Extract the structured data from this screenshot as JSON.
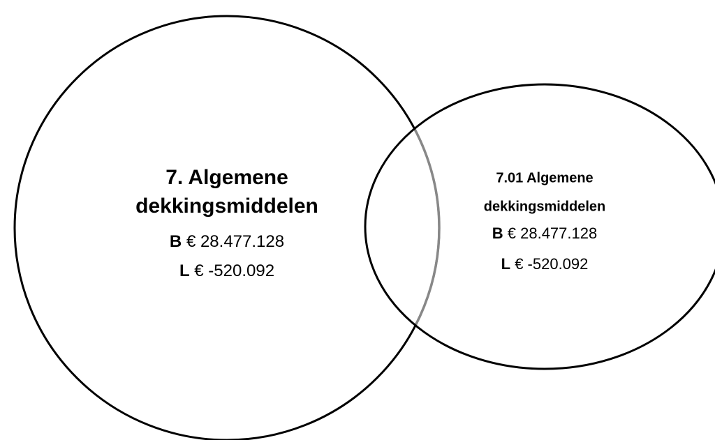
{
  "nodes": [
    {
      "title": [
        "7. Algemene",
        "dekkingsmiddelen"
      ],
      "lines": [
        {
          "label": "B",
          "amount": "€ 28.477.128"
        },
        {
          "label": "L",
          "amount": "€ -520.092"
        }
      ]
    },
    {
      "title": [
        "7.01 Algemene",
        "dekkingsmiddelen"
      ],
      "lines": [
        {
          "label": "B",
          "amount": "€ 28.477.128"
        },
        {
          "label": "L",
          "amount": "€ -520.092"
        }
      ]
    }
  ]
}
